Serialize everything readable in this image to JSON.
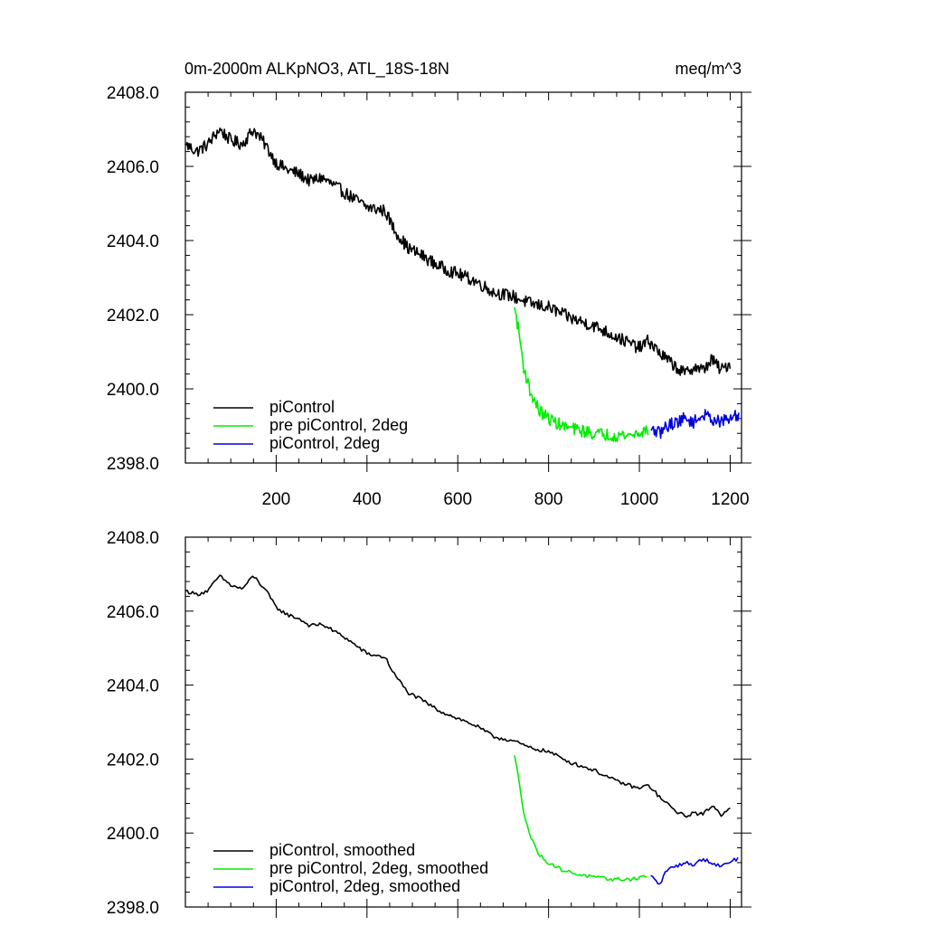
{
  "figure": {
    "title_left": "0m-2000m ALKpNO3, ATL_18S-18N",
    "title_right": "meq/m^3"
  },
  "chart_data": [
    {
      "type": "line",
      "title": "0m-2000m ALKpNO3, ATL_18S-18N",
      "units": "meq/m^3",
      "xlim": [
        0,
        1225
      ],
      "ylim": [
        2398.0,
        2408.0
      ],
      "x_ticks": [
        200,
        400,
        600,
        800,
        1000,
        1200
      ],
      "x_tick_labels": [
        "200",
        "400",
        "600",
        "800",
        "1000",
        "1200"
      ],
      "y_ticks": [
        2398.0,
        2400.0,
        2402.0,
        2404.0,
        2406.0,
        2408.0
      ],
      "y_tick_labels": [
        "2398.0",
        "2400.0",
        "2402.0",
        "2404.0",
        "2406.0",
        "2408.0"
      ],
      "grid": false,
      "legend_position": "bottom-left",
      "series": [
        {
          "name": "piControl",
          "color": "#000000",
          "noisy": true,
          "x": [
            0,
            25,
            50,
            75,
            100,
            125,
            150,
            175,
            200,
            225,
            250,
            275,
            300,
            350,
            400,
            440,
            460,
            490,
            520,
            560,
            600,
            640,
            680,
            720,
            760,
            800,
            850,
            900,
            950,
            1000,
            1020,
            1050,
            1080,
            1100,
            1120,
            1140,
            1160,
            1180,
            1200
          ],
          "values": [
            2406.6,
            2406.4,
            2406.6,
            2407.0,
            2406.7,
            2406.6,
            2407.0,
            2406.6,
            2406.1,
            2405.9,
            2405.8,
            2405.6,
            2405.7,
            2405.3,
            2404.9,
            2404.8,
            2404.3,
            2403.8,
            2403.6,
            2403.3,
            2403.1,
            2402.9,
            2402.6,
            2402.5,
            2402.3,
            2402.2,
            2401.9,
            2401.7,
            2401.4,
            2401.1,
            2401.3,
            2400.9,
            2400.6,
            2400.4,
            2400.6,
            2400.5,
            2400.8,
            2400.5,
            2400.7
          ]
        },
        {
          "name": "pre piControl, 2deg",
          "color": "#00ee00",
          "noisy": true,
          "x": [
            725,
            735,
            745,
            760,
            780,
            800,
            830,
            860,
            900,
            940,
            980,
            1020
          ],
          "values": [
            2402.2,
            2401.5,
            2400.6,
            2399.9,
            2399.4,
            2399.2,
            2399.0,
            2398.9,
            2398.8,
            2398.75,
            2398.75,
            2398.9
          ]
        },
        {
          "name": "piControl, 2deg",
          "color": "#0000dd",
          "noisy": true,
          "x": [
            1025,
            1045,
            1060,
            1080,
            1100,
            1120,
            1140,
            1160,
            1180,
            1200,
            1220
          ],
          "values": [
            2398.9,
            2398.8,
            2399.0,
            2399.1,
            2399.2,
            2399.1,
            2399.3,
            2399.2,
            2399.1,
            2399.2,
            2399.3
          ]
        }
      ]
    },
    {
      "type": "line",
      "xlim": [
        0,
        1225
      ],
      "ylim": [
        2398.0,
        2408.0
      ],
      "x_ticks": [
        200,
        400,
        600,
        800,
        1000,
        1200
      ],
      "y_ticks": [
        2398.0,
        2400.0,
        2402.0,
        2404.0,
        2406.0,
        2408.0
      ],
      "y_tick_labels": [
        "2398.0",
        "2400.0",
        "2402.0",
        "2404.0",
        "2406.0",
        "2408.0"
      ],
      "grid": false,
      "legend_position": "bottom-left",
      "series": [
        {
          "name": "piControl, smoothed",
          "color": "#000000",
          "noisy": false,
          "x": [
            0,
            25,
            50,
            75,
            100,
            125,
            150,
            175,
            200,
            225,
            250,
            275,
            300,
            350,
            400,
            440,
            460,
            490,
            520,
            560,
            600,
            640,
            680,
            720,
            760,
            800,
            850,
            900,
            950,
            1000,
            1020,
            1050,
            1080,
            1100,
            1120,
            1140,
            1160,
            1180,
            1200
          ],
          "values": [
            2406.55,
            2406.45,
            2406.55,
            2406.95,
            2406.7,
            2406.6,
            2406.95,
            2406.6,
            2406.1,
            2405.9,
            2405.8,
            2405.6,
            2405.65,
            2405.3,
            2404.85,
            2404.75,
            2404.3,
            2403.8,
            2403.6,
            2403.3,
            2403.1,
            2402.9,
            2402.6,
            2402.5,
            2402.3,
            2402.2,
            2401.9,
            2401.7,
            2401.4,
            2401.2,
            2401.3,
            2400.9,
            2400.6,
            2400.45,
            2400.55,
            2400.5,
            2400.75,
            2400.5,
            2400.7
          ]
        },
        {
          "name": "pre piControl, 2deg, smoothed",
          "color": "#00ee00",
          "noisy": false,
          "x": [
            725,
            735,
            745,
            760,
            780,
            800,
            830,
            860,
            900,
            940,
            980,
            1020
          ],
          "values": [
            2402.1,
            2401.4,
            2400.6,
            2399.9,
            2399.4,
            2399.2,
            2399.0,
            2398.9,
            2398.8,
            2398.75,
            2398.75,
            2398.85
          ]
        },
        {
          "name": "piControl, 2deg, smoothed",
          "color": "#0000dd",
          "noisy": false,
          "x": [
            1025,
            1045,
            1060,
            1080,
            1100,
            1120,
            1140,
            1160,
            1180,
            1200,
            1220
          ],
          "values": [
            2398.85,
            2398.6,
            2399.0,
            2399.1,
            2399.2,
            2399.15,
            2399.3,
            2399.2,
            2399.1,
            2399.25,
            2399.3
          ]
        }
      ]
    }
  ]
}
